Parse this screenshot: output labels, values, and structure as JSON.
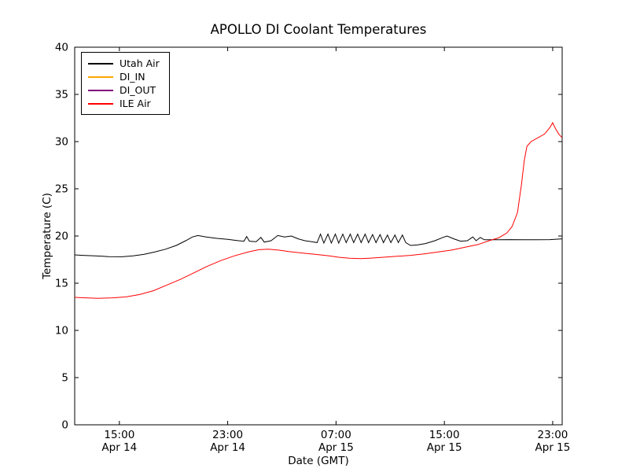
{
  "chart_data": {
    "type": "line",
    "title": "APOLLO DI Coolant Temperatures",
    "xlabel": "Date (GMT)",
    "ylabel": "Temperature (C)",
    "ylim": [
      0,
      40
    ],
    "yticks": [
      0,
      5,
      10,
      15,
      20,
      25,
      30,
      35,
      40
    ],
    "xlim_hours": [
      11.7,
      47.7
    ],
    "xticks": [
      {
        "hours": 15,
        "time": "15:00",
        "date": "Apr 14"
      },
      {
        "hours": 23,
        "time": "23:00",
        "date": "Apr 14"
      },
      {
        "hours": 31,
        "time": "07:00",
        "date": "Apr 15"
      },
      {
        "hours": 39,
        "time": "15:00",
        "date": "Apr 15"
      },
      {
        "hours": 47,
        "time": "23:00",
        "date": "Apr 15"
      }
    ],
    "grid": false,
    "legend_position": "upper left",
    "series": [
      {
        "name": "Utah Air",
        "color": "#000000",
        "points": [
          [
            11.7,
            18.0
          ],
          [
            12.3,
            17.95
          ],
          [
            13.2,
            17.9
          ],
          [
            14.2,
            17.82
          ],
          [
            15.2,
            17.8
          ],
          [
            16.0,
            17.9
          ],
          [
            16.8,
            18.05
          ],
          [
            17.6,
            18.3
          ],
          [
            18.4,
            18.6
          ],
          [
            19.2,
            19.0
          ],
          [
            19.9,
            19.5
          ],
          [
            20.4,
            19.9
          ],
          [
            20.8,
            20.05
          ],
          [
            21.4,
            19.9
          ],
          [
            22.2,
            19.75
          ],
          [
            23.0,
            19.65
          ],
          [
            23.8,
            19.5
          ],
          [
            24.2,
            19.45
          ],
          [
            24.4,
            19.95
          ],
          [
            24.6,
            19.45
          ],
          [
            25.1,
            19.4
          ],
          [
            25.45,
            19.85
          ],
          [
            25.7,
            19.35
          ],
          [
            26.2,
            19.5
          ],
          [
            26.7,
            20.05
          ],
          [
            27.2,
            19.9
          ],
          [
            27.7,
            20.0
          ],
          [
            28.2,
            19.7
          ],
          [
            28.7,
            19.5
          ],
          [
            29.2,
            19.4
          ],
          [
            29.6,
            19.3
          ],
          [
            29.85,
            20.2
          ],
          [
            30.1,
            19.25
          ],
          [
            30.4,
            20.2
          ],
          [
            30.65,
            19.25
          ],
          [
            30.95,
            20.2
          ],
          [
            31.2,
            19.25
          ],
          [
            31.5,
            20.2
          ],
          [
            31.75,
            19.3
          ],
          [
            32.05,
            20.2
          ],
          [
            32.3,
            19.3
          ],
          [
            32.6,
            20.2
          ],
          [
            32.85,
            19.3
          ],
          [
            33.15,
            20.2
          ],
          [
            33.4,
            19.3
          ],
          [
            33.7,
            20.15
          ],
          [
            33.95,
            19.3
          ],
          [
            34.25,
            20.15
          ],
          [
            34.5,
            19.3
          ],
          [
            34.8,
            20.1
          ],
          [
            35.05,
            19.3
          ],
          [
            35.35,
            20.1
          ],
          [
            35.6,
            19.3
          ],
          [
            35.9,
            20.1
          ],
          [
            36.15,
            19.3
          ],
          [
            36.5,
            19.0
          ],
          [
            37.0,
            19.05
          ],
          [
            37.6,
            19.2
          ],
          [
            38.3,
            19.5
          ],
          [
            38.9,
            19.85
          ],
          [
            39.2,
            20.0
          ],
          [
            39.7,
            19.7
          ],
          [
            40.2,
            19.45
          ],
          [
            40.7,
            19.5
          ],
          [
            41.1,
            19.9
          ],
          [
            41.35,
            19.5
          ],
          [
            41.65,
            19.85
          ],
          [
            41.95,
            19.6
          ],
          [
            42.8,
            19.6
          ],
          [
            43.8,
            19.62
          ],
          [
            44.8,
            19.6
          ],
          [
            45.8,
            19.6
          ],
          [
            46.8,
            19.62
          ],
          [
            47.7,
            19.7
          ]
        ]
      },
      {
        "name": "DI_IN",
        "color": "#ffa500",
        "points": []
      },
      {
        "name": "DI_OUT",
        "color": "#800080",
        "points": []
      },
      {
        "name": "ILE Air",
        "color": "#ff0000",
        "points": [
          [
            11.7,
            13.5
          ],
          [
            12.5,
            13.45
          ],
          [
            13.5,
            13.4
          ],
          [
            14.5,
            13.45
          ],
          [
            15.5,
            13.55
          ],
          [
            16.5,
            13.8
          ],
          [
            17.5,
            14.2
          ],
          [
            18.5,
            14.8
          ],
          [
            19.5,
            15.4
          ],
          [
            20.5,
            16.1
          ],
          [
            21.5,
            16.8
          ],
          [
            22.5,
            17.4
          ],
          [
            23.5,
            17.9
          ],
          [
            24.5,
            18.3
          ],
          [
            25.3,
            18.55
          ],
          [
            26.0,
            18.6
          ],
          [
            26.8,
            18.5
          ],
          [
            27.5,
            18.35
          ],
          [
            28.5,
            18.2
          ],
          [
            29.5,
            18.05
          ],
          [
            30.5,
            17.9
          ],
          [
            31.2,
            17.75
          ],
          [
            32.0,
            17.65
          ],
          [
            32.8,
            17.6
          ],
          [
            33.5,
            17.65
          ],
          [
            34.5,
            17.75
          ],
          [
            35.5,
            17.85
          ],
          [
            36.5,
            17.95
          ],
          [
            37.5,
            18.1
          ],
          [
            38.5,
            18.3
          ],
          [
            39.5,
            18.5
          ],
          [
            40.5,
            18.8
          ],
          [
            41.5,
            19.1
          ],
          [
            42.3,
            19.5
          ],
          [
            43.0,
            19.8
          ],
          [
            43.6,
            20.3
          ],
          [
            44.0,
            21.0
          ],
          [
            44.4,
            22.5
          ],
          [
            44.7,
            25.5
          ],
          [
            44.9,
            28.0
          ],
          [
            45.1,
            29.5
          ],
          [
            45.4,
            30.0
          ],
          [
            45.9,
            30.4
          ],
          [
            46.4,
            30.8
          ],
          [
            46.8,
            31.5
          ],
          [
            47.0,
            32.0
          ],
          [
            47.2,
            31.4
          ],
          [
            47.45,
            30.8
          ],
          [
            47.7,
            30.4
          ]
        ]
      }
    ]
  }
}
